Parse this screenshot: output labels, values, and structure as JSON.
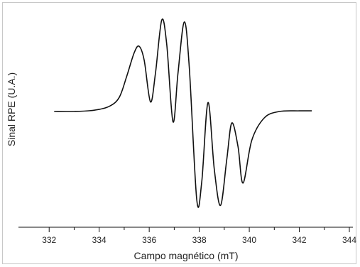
{
  "chart_data": {
    "type": "line",
    "title": "",
    "xlabel": "Campo magnético (mT)",
    "ylabel": "Sinal RPE (U.A.)",
    "xlim": [
      331,
      344
    ],
    "ylim": [
      -1.0,
      1.0
    ],
    "xticks": [
      332,
      334,
      336,
      338,
      340,
      342,
      344
    ],
    "xtick_labels": [
      "332",
      "334",
      "336",
      "338",
      "340",
      "342",
      "344"
    ],
    "y_tick_labels_shown": false,
    "grid": false,
    "legend": "none",
    "line_color": "#111111",
    "series": [
      {
        "x": [
          332.2,
          333.0,
          333.8,
          334.4,
          334.8,
          335.1,
          335.4,
          335.6,
          335.8,
          336.05,
          336.25,
          336.5,
          336.7,
          336.95,
          337.15,
          337.4,
          337.6,
          337.9,
          338.1,
          338.35,
          338.6,
          338.85,
          339.1,
          339.3,
          339.55,
          339.75,
          340.1,
          340.6,
          341.2,
          342.0,
          342.5
        ],
        "y": [
          0.0,
          0.0,
          0.02,
          0.08,
          0.22,
          0.55,
          0.92,
          1.02,
          0.8,
          0.15,
          0.6,
          1.43,
          1.05,
          -0.16,
          0.6,
          1.4,
          0.7,
          -1.38,
          -1.1,
          0.14,
          -0.9,
          -1.47,
          -0.75,
          -0.18,
          -0.55,
          -1.12,
          -0.45,
          -0.1,
          0.0,
          0.01,
          0.01
        ]
      }
    ]
  }
}
